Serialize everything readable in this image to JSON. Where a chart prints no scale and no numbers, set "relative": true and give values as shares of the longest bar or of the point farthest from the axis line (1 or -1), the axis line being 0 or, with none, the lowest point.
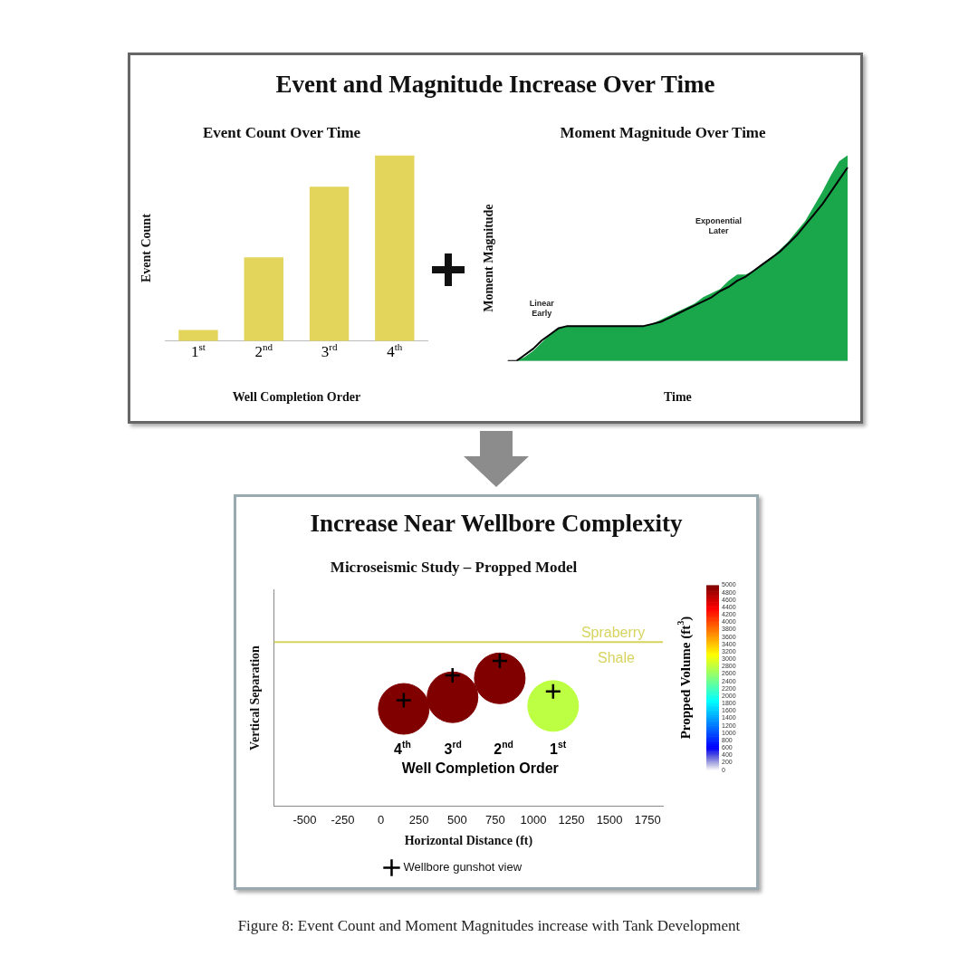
{
  "chart_data": [
    {
      "type": "other",
      "title": "Event and Magnitude Increase Over Time"
    },
    {
      "type": "bar",
      "title": "Event Count Over Time",
      "xlabel": "Well Completion Order",
      "ylabel": "Event Count",
      "categories": [
        "1$^{st}$",
        "2$^{nd}$",
        "3$^{rd}$",
        "4$^{th}$"
      ],
      "values": [
        0.06,
        0.45,
        0.83,
        1
      ],
      "color": "#e3d45b",
      "relative": true
    },
    {
      "type": "area",
      "title": "Moment Magnitude Over Time",
      "xlabel": "Time",
      "ylabel": "Moment Magnitude",
      "relative": true,
      "annotations": [
        "Linear Early",
        "Exponential Later"
      ],
      "categories": [
        null,
        null,
        null,
        null,
        null,
        null,
        null,
        null,
        null,
        null,
        null,
        null,
        null,
        null,
        null,
        null,
        null,
        null,
        null,
        null,
        null,
        null,
        null,
        null,
        null,
        null,
        null,
        null,
        null,
        null,
        null,
        null,
        null,
        null,
        null,
        null,
        null,
        null,
        null,
        null,
        null
      ],
      "series": [
        {
          "type": "area",
          "color": "#1aa64a",
          "values": [
            0,
            0,
            0.02,
            0.05,
            0.09,
            0.13,
            0.16,
            0.17,
            0.17,
            0.17,
            0.17,
            0.17,
            0.17,
            0.17,
            0.17,
            0.17,
            0.17,
            0.18,
            0.2,
            0.22,
            0.24,
            0.26,
            0.28,
            0.31,
            0.33,
            0.35,
            0.39,
            0.42,
            0.42,
            0.44,
            0.47,
            0.5,
            0.54,
            0.58,
            0.63,
            0.68,
            0.75,
            0.82,
            0.9,
            0.97,
            1
          ]
        },
        {
          "type": "line",
          "color": "#000000",
          "values": [
            0,
            0,
            0.03,
            0.06,
            0.1,
            0.13,
            0.16,
            0.17,
            0.17,
            0.17,
            0.17,
            0.17,
            0.17,
            0.17,
            0.17,
            0.17,
            0.17,
            0.18,
            0.19,
            0.21,
            0.23,
            0.25,
            0.27,
            0.29,
            0.31,
            0.34,
            0.36,
            0.39,
            0.41,
            0.44,
            0.47,
            0.5,
            0.53,
            0.57,
            0.61,
            0.66,
            0.71,
            0.76,
            0.82,
            0.88,
            0.94
          ]
        }
      ]
    },
    {
      "type": "other",
      "title": "Increase Near Wellbore Complexity"
    },
    {
      "type": "scatter",
      "title": "Microseismic Study – Propped Model",
      "xlabel": "Horizontal Distance (ft)",
      "ylabel": "Vertical Separation",
      "clabel": "Propped Volume (ft$^{3}$)",
      "relative": true,
      "tick_labels": "x",
      "legend": "bottom",
      "xlim": [
        -700,
        1850
      ],
      "xticks": [
        -500,
        -250,
        0,
        250,
        500,
        750,
        1000,
        1250,
        1500,
        1750
      ],
      "clim": [
        0,
        5000
      ],
      "cticks": [
        0,
        200,
        400,
        600,
        800,
        1000,
        1200,
        1400,
        1600,
        1800,
        2000,
        2200,
        2400,
        2600,
        2800,
        3000,
        3200,
        3400,
        3600,
        3800,
        4000,
        4200,
        4400,
        4600,
        4800,
        5000
      ],
      "ref_lines": [
        {
          "axis": "y",
          "value": 1.13,
          "label": "Spraberry",
          "color": "#d6d45e"
        }
      ],
      "annotations": [
        "Shale",
        "4$^{th}$",
        "3$^{rd}$",
        "2$^{nd}$",
        "1$^{st}$",
        "Well Completion Order"
      ],
      "series": [
        {
          "marker": "circle",
          "x": [
            150,
            470,
            780,
            1130
          ],
          "values": [
            0.67,
            0.75,
            0.88,
            0.69
          ],
          "cvalues": [
            5000,
            5000,
            5000,
            2800
          ],
          "colors": [
            "#800000",
            "#800000",
            "#800000",
            "#bdff42"
          ]
        },
        {
          "name": "Wellbore gunshot view",
          "marker": "cross",
          "color": "#000000",
          "x": [
            150,
            470,
            780,
            1130
          ],
          "values": [
            0.73,
            0.9,
            1,
            0.79
          ]
        }
      ]
    },
    {
      "type": "other",
      "annotations": [
        "Figure 8:  Event Count and Moment Magnitudes increase with Tank Development"
      ]
    }
  ]
}
